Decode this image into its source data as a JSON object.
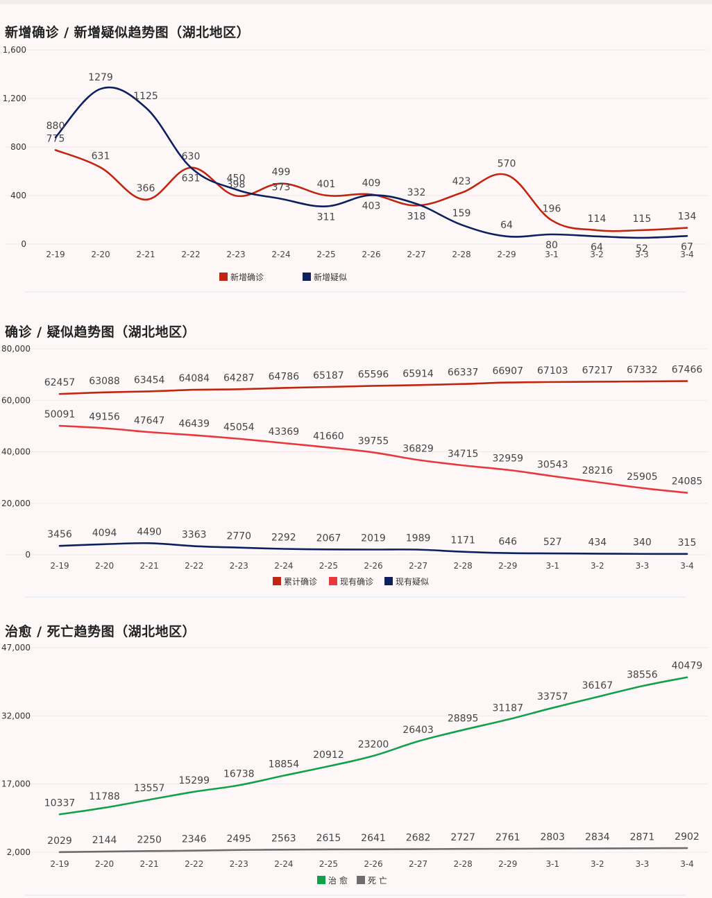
{
  "charts": [
    {
      "id": "c1",
      "title": "新增确诊 / 新增疑似趋势图（湖北地区）",
      "chart_data": {
        "type": "line",
        "categories": [
          "2-19",
          "2-20",
          "2-21",
          "2-22",
          "2-23",
          "2-24",
          "2-25",
          "2-26",
          "2-27",
          "2-28",
          "2-29",
          "3-1",
          "3-2",
          "3-3",
          "3-4"
        ],
        "ylim": [
          0,
          1600
        ],
        "yticks": [
          0,
          400,
          800,
          1200,
          1600
        ],
        "ytick_labels": [
          "0",
          "400",
          "800",
          "1,200",
          "1,600"
        ],
        "grid": true,
        "legend": "bottom-center",
        "series": [
          {
            "name": "新增确诊",
            "color": "#c0260f",
            "values": [
              775,
              631,
              366,
              630,
              398,
              499,
              401,
              409,
              318,
              423,
              570,
              196,
              114,
              115,
              134
            ]
          },
          {
            "name": "新增疑似",
            "color": "#0c2060",
            "values": [
              880,
              1279,
              1125,
              631,
              450,
              373,
              311,
              403,
              332,
              159,
              64,
              80,
              64,
              52,
              67
            ]
          }
        ]
      }
    },
    {
      "id": "c2",
      "title": "确诊 / 疑似趋势图（湖北地区）",
      "chart_data": {
        "type": "line",
        "categories": [
          "2-19",
          "2-20",
          "2-21",
          "2-22",
          "2-23",
          "2-24",
          "2-25",
          "2-26",
          "2-27",
          "2-28",
          "2-29",
          "3-1",
          "3-2",
          "3-3",
          "3-4"
        ],
        "ylim": [
          0,
          80000
        ],
        "yticks": [
          0,
          20000,
          40000,
          60000,
          80000
        ],
        "ytick_labels": [
          "0",
          "20,000",
          "40,000",
          "60,000",
          "80,000"
        ],
        "grid": true,
        "legend": "bottom-center",
        "series": [
          {
            "name": "累计确诊",
            "color": "#c0260f",
            "values": [
              62457,
              63088,
              63454,
              64084,
              64287,
              64786,
              65187,
              65596,
              65914,
              66337,
              66907,
              67103,
              67217,
              67332,
              67466
            ]
          },
          {
            "name": "现有确诊",
            "color": "#e8383d",
            "values": [
              50091,
              49156,
              47647,
              46439,
              45054,
              43369,
              41660,
              39755,
              36829,
              34715,
              32959,
              30543,
              28216,
              25905,
              24085
            ]
          },
          {
            "name": "现有疑似",
            "color": "#0c2060",
            "values": [
              3456,
              4094,
              4490,
              3363,
              2770,
              2292,
              2067,
              2019,
              1989,
              1171,
              646,
              527,
              434,
              340,
              315
            ]
          }
        ]
      }
    },
    {
      "id": "c3",
      "title": "治愈 / 死亡趋势图（湖北地区）",
      "chart_data": {
        "type": "line",
        "categories": [
          "2-19",
          "2-20",
          "2-21",
          "2-22",
          "2-23",
          "2-24",
          "2-25",
          "2-26",
          "2-27",
          "2-28",
          "2-29",
          "3-1",
          "3-2",
          "3-3",
          "3-4"
        ],
        "ylim": [
          2000,
          47000
        ],
        "yticks": [
          2000,
          17000,
          32000,
          47000
        ],
        "ytick_labels": [
          "2,000",
          "17,000",
          "32,000",
          "47,000"
        ],
        "grid": true,
        "legend": "bottom-center",
        "series": [
          {
            "name": "治 愈",
            "color": "#12a04a",
            "values": [
              10337,
              11788,
              13557,
              15299,
              16738,
              18854,
              20912,
              23200,
              26403,
              28895,
              31187,
              33757,
              36167,
              38556,
              40479
            ]
          },
          {
            "name": "死 亡",
            "color": "#6d6d6d",
            "values": [
              2029,
              2144,
              2250,
              2346,
              2495,
              2563,
              2615,
              2641,
              2682,
              2727,
              2761,
              2803,
              2834,
              2871,
              2902
            ]
          }
        ]
      }
    }
  ]
}
